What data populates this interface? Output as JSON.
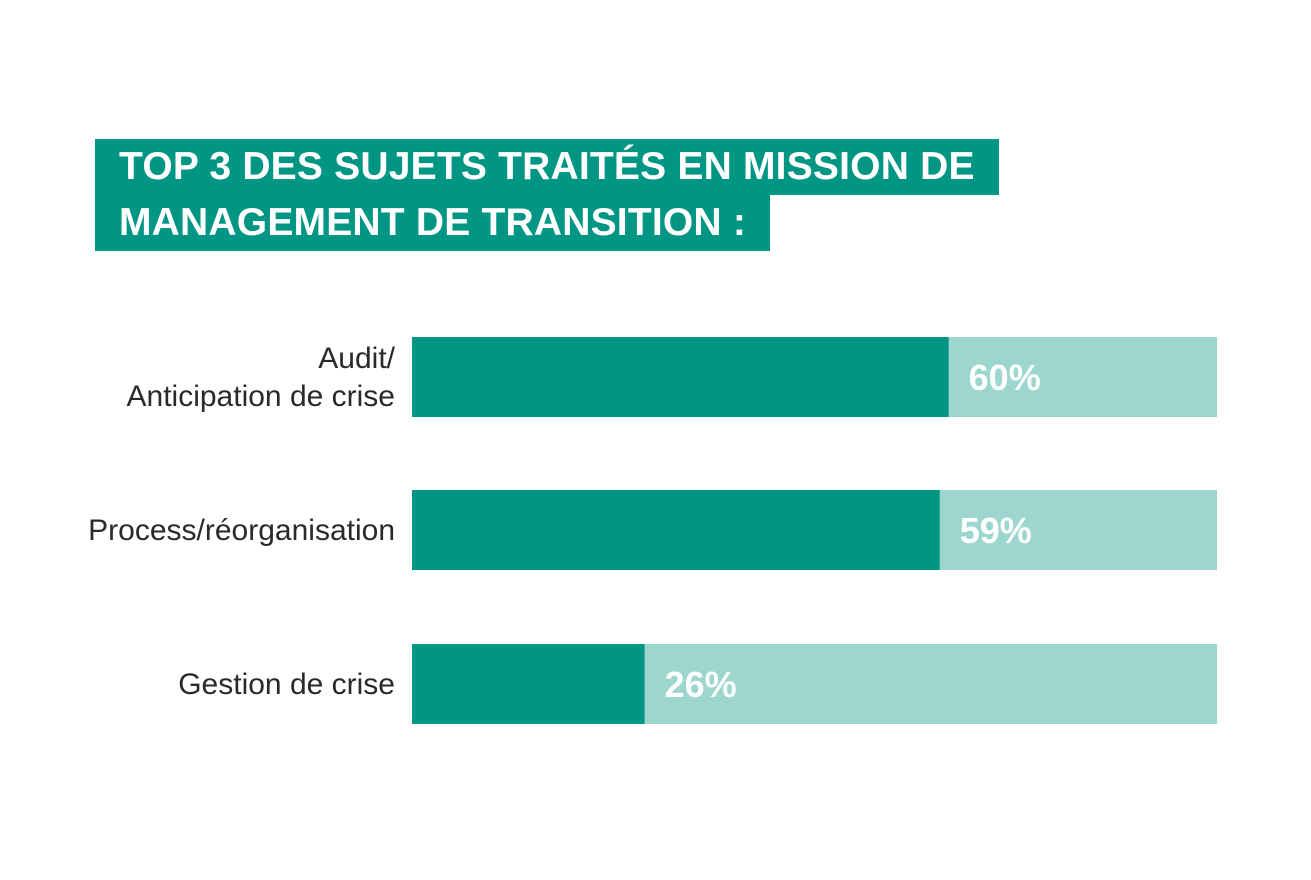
{
  "title_lines": [
    "TOP 3 DES SUJETS TRAITÉS EN MISSION DE",
    "MANAGEMENT DE TRANSITION :"
  ],
  "colors": {
    "fill": "#009683",
    "track": "#9dd6ce",
    "title_bg": "#009683",
    "label_text": "#2a2a2a",
    "value_text": "#ffffff"
  },
  "chart_data": {
    "type": "bar",
    "orientation": "horizontal",
    "title": "TOP 3 DES SUJETS TRAITÉS EN MISSION DE MANAGEMENT DE TRANSITION :",
    "categories": [
      [
        "Audit/",
        "Anticipation de crise"
      ],
      [
        "Process/réorganisation"
      ],
      [
        "Gestion de crise"
      ]
    ],
    "values": [
      60,
      59,
      26
    ],
    "value_labels": [
      "60%",
      "59%",
      "26%"
    ],
    "xlim": [
      0,
      90
    ],
    "xlabel": "",
    "ylabel": "",
    "grid": false,
    "legend": "none"
  }
}
